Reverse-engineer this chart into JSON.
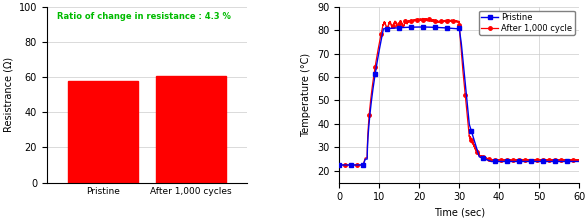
{
  "bar_categories": [
    "Pristine",
    "After 1,000 cycles"
  ],
  "bar_values": [
    58.0,
    60.5
  ],
  "bar_color": "#FF0000",
  "bar_ylabel": "Resistrance (Ω)",
  "bar_ylim": [
    0,
    100
  ],
  "bar_yticks": [
    0,
    20,
    40,
    60,
    80,
    100
  ],
  "annotation_text": "Ratio of change in resistance : 4.3 %",
  "annotation_color": "#00BB00",
  "line_xlabel": "Time (sec)",
  "line_ylabel": "Temperature (°C)",
  "line_xlim": [
    0,
    60
  ],
  "line_ylim": [
    15,
    90
  ],
  "line_yticks": [
    20,
    30,
    40,
    50,
    60,
    70,
    80,
    90
  ],
  "line_xticks": [
    0,
    10,
    20,
    30,
    40,
    50,
    60
  ],
  "legend_labels": [
    "Pristine",
    "After 1,000 cycle"
  ],
  "pristine_color": "#0000EE",
  "after_color": "#FF0000",
  "bg_color": "#FFFFFF",
  "grid_color": "#CCCCCC"
}
